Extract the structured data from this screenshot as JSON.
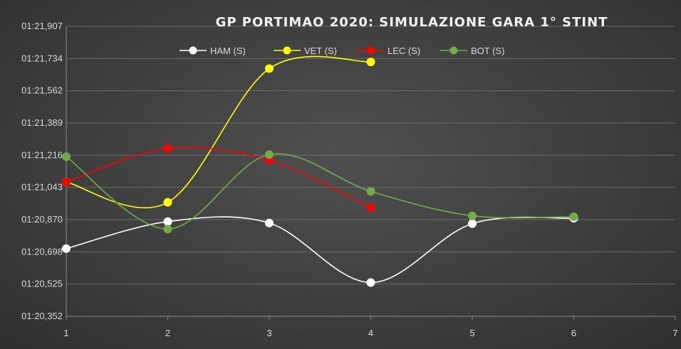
{
  "chart_data": {
    "type": "line",
    "title": "GP PORTIMAO 2020: SIMULAZIONE GARA 1° STINT",
    "xlabel": "",
    "ylabel": "",
    "x_ticks": [
      "1",
      "2",
      "3",
      "4",
      "5",
      "6",
      "7"
    ],
    "xlim": [
      1,
      7
    ],
    "y_ticks": [
      "01:20,352",
      "01:20,525",
      "01:20,698",
      "01:20,870",
      "01:21,043",
      "01:21,216",
      "01:21,389",
      "01:21,562",
      "01:21,734",
      "01:21,907"
    ],
    "ylim": [
      80.352,
      81.907
    ],
    "y_unit": "seconds",
    "grid": true,
    "legend_position": "top",
    "smooth": true,
    "series": [
      {
        "name": "HAM (S)",
        "color": "#ffffff",
        "x": [
          1,
          2,
          3,
          4,
          5,
          6
        ],
        "values": [
          80.715,
          80.86,
          80.852,
          80.533,
          80.849,
          80.878
        ]
      },
      {
        "name": "VET (S)",
        "color": "#ffff00",
        "x": [
          1,
          2,
          3,
          4
        ],
        "values": [
          81.072,
          80.963,
          81.68,
          81.716
        ]
      },
      {
        "name": "LEC (S)",
        "color": "#ff0000",
        "x": [
          1,
          2,
          3,
          4
        ],
        "values": [
          81.072,
          81.252,
          81.189,
          80.934
        ]
      },
      {
        "name": "BOT (S)",
        "color": "#70ad47",
        "x": [
          1,
          2,
          3,
          4,
          5,
          6
        ],
        "values": [
          81.208,
          80.82,
          81.219,
          81.022,
          80.891,
          80.886
        ]
      }
    ]
  }
}
